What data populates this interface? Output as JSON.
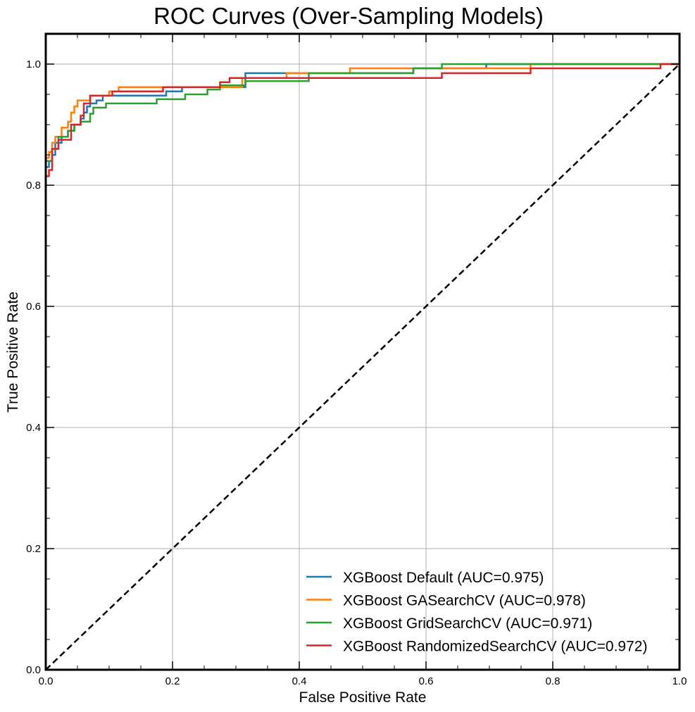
{
  "chart_data": {
    "type": "line",
    "title": "ROC Curves (Over-Sampling Models)",
    "xlabel": "False Positive Rate",
    "ylabel": "True Positive Rate",
    "xlim": [
      0,
      1
    ],
    "ylim": [
      0,
      1.05
    ],
    "x_ticks": [
      "0.0",
      "0.2",
      "0.4",
      "0.6",
      "0.8",
      "1.0"
    ],
    "y_ticks": [
      "0.0",
      "0.2",
      "0.4",
      "0.6",
      "0.8",
      "1.0"
    ],
    "grid": true,
    "legend_position": "lower-right",
    "diagonal": {
      "style": "dashed",
      "color": "#000000",
      "from": [
        0,
        0
      ],
      "to": [
        1,
        1
      ]
    },
    "series": [
      {
        "name": "XGBoost Default (AUC=0.975)",
        "color": "#1f77b4",
        "x": [
          0,
          0,
          0.005,
          0.005,
          0.01,
          0.01,
          0.015,
          0.015,
          0.025,
          0.025,
          0.035,
          0.035,
          0.045,
          0.045,
          0.055,
          0.055,
          0.06,
          0.06,
          0.065,
          0.065,
          0.07,
          0.07,
          0.08,
          0.08,
          0.09,
          0.09,
          0.19,
          0.19,
          0.215,
          0.215,
          0.315,
          0.315,
          0.58,
          0.58,
          0.695,
          0.695,
          1.0
        ],
        "y": [
          0,
          0.83,
          0.83,
          0.84,
          0.84,
          0.85,
          0.85,
          0.87,
          0.87,
          0.88,
          0.88,
          0.89,
          0.89,
          0.9,
          0.9,
          0.91,
          0.91,
          0.92,
          0.92,
          0.93,
          0.93,
          0.935,
          0.935,
          0.94,
          0.94,
          0.948,
          0.948,
          0.955,
          0.955,
          0.962,
          0.962,
          0.985,
          0.985,
          0.993,
          0.993,
          1.0,
          1.0
        ]
      },
      {
        "name": "XGBoost GASearchCV (AUC=0.978)",
        "color": "#ff7f0e",
        "x": [
          0,
          0,
          0.005,
          0.005,
          0.01,
          0.01,
          0.015,
          0.015,
          0.025,
          0.025,
          0.035,
          0.035,
          0.04,
          0.04,
          0.045,
          0.045,
          0.05,
          0.05,
          0.07,
          0.07,
          0.1,
          0.1,
          0.115,
          0.115,
          0.31,
          0.31,
          0.38,
          0.38,
          0.48,
          0.48,
          0.765,
          0.765,
          1.0
        ],
        "y": [
          0,
          0.845,
          0.845,
          0.855,
          0.855,
          0.87,
          0.87,
          0.88,
          0.88,
          0.895,
          0.895,
          0.905,
          0.905,
          0.92,
          0.92,
          0.93,
          0.93,
          0.94,
          0.94,
          0.948,
          0.948,
          0.955,
          0.955,
          0.962,
          0.962,
          0.977,
          0.977,
          0.985,
          0.985,
          0.993,
          0.993,
          1.0,
          1.0
        ]
      },
      {
        "name": "XGBoost GridSearchCV (AUC=0.971)",
        "color": "#2ca02c",
        "x": [
          0,
          0,
          0.01,
          0.01,
          0.02,
          0.02,
          0.035,
          0.035,
          0.045,
          0.045,
          0.055,
          0.055,
          0.07,
          0.07,
          0.075,
          0.075,
          0.095,
          0.095,
          0.175,
          0.175,
          0.22,
          0.22,
          0.255,
          0.255,
          0.275,
          0.275,
          0.315,
          0.315,
          0.415,
          0.415,
          0.58,
          0.58,
          0.625,
          0.625,
          0.975,
          0.975,
          1.0
        ],
        "y": [
          0,
          0.84,
          0.84,
          0.86,
          0.86,
          0.88,
          0.88,
          0.89,
          0.89,
          0.9,
          0.9,
          0.905,
          0.905,
          0.918,
          0.918,
          0.928,
          0.928,
          0.935,
          0.935,
          0.942,
          0.942,
          0.95,
          0.95,
          0.958,
          0.958,
          0.965,
          0.965,
          0.972,
          0.972,
          0.985,
          0.985,
          0.993,
          0.993,
          1.0,
          1.0,
          1.0,
          1.0
        ]
      },
      {
        "name": "XGBoost RandomizedSearchCV (AUC=0.972)",
        "color": "#d62728",
        "x": [
          0,
          0,
          0.005,
          0.005,
          0.01,
          0.01,
          0.02,
          0.02,
          0.04,
          0.04,
          0.055,
          0.055,
          0.06,
          0.06,
          0.07,
          0.07,
          0.105,
          0.105,
          0.185,
          0.185,
          0.275,
          0.275,
          0.29,
          0.29,
          0.32,
          0.32,
          0.42,
          0.42,
          0.625,
          0.625,
          0.765,
          0.765,
          0.97,
          0.97,
          1.0
        ],
        "y": [
          0,
          0.815,
          0.815,
          0.825,
          0.825,
          0.86,
          0.86,
          0.875,
          0.875,
          0.9,
          0.9,
          0.915,
          0.915,
          0.935,
          0.935,
          0.948,
          0.948,
          0.955,
          0.955,
          0.962,
          0.962,
          0.97,
          0.97,
          0.977,
          0.977,
          0.977,
          0.977,
          0.977,
          0.977,
          0.985,
          0.985,
          0.993,
          0.993,
          1.0,
          1.0
        ]
      }
    ]
  }
}
